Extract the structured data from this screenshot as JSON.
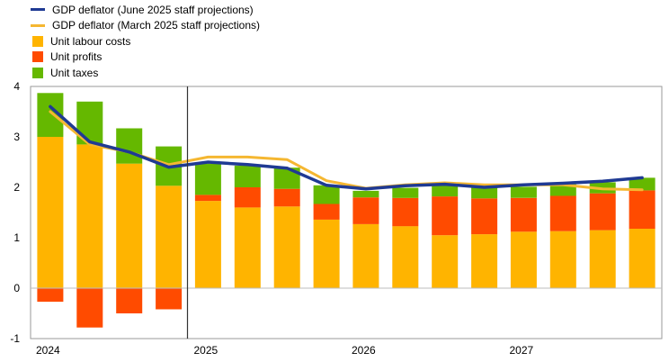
{
  "legend": [
    {
      "label": "GDP deflator (June 2025 staff projections)",
      "color": "#1f3a93",
      "kind": "line"
    },
    {
      "label": "GDP deflator (March 2025 staff projections)",
      "color": "#f5b731",
      "kind": "line"
    },
    {
      "label": "Unit labour costs",
      "color": "#ffb400",
      "kind": "box"
    },
    {
      "label": "Unit profits",
      "color": "#ff4b00",
      "kind": "box"
    },
    {
      "label": "Unit taxes",
      "color": "#65b800",
      "kind": "box"
    }
  ],
  "chart_data": {
    "type": "bar",
    "stacked": true,
    "quarters": [
      "2024Q1",
      "2024Q2",
      "2024Q3",
      "2024Q4",
      "2025Q1",
      "2025Q2",
      "2025Q3",
      "2025Q4",
      "2026Q1",
      "2026Q2",
      "2026Q3",
      "2026Q4",
      "2027Q1",
      "2027Q2",
      "2027Q3",
      "2027Q4"
    ],
    "year_labels": [
      {
        "label": "2024",
        "index": 0
      },
      {
        "label": "2025",
        "index": 4
      },
      {
        "label": "2026",
        "index": 8
      },
      {
        "label": "2027",
        "index": 12
      }
    ],
    "series": [
      {
        "name": "Unit labour costs",
        "values": [
          3.0,
          2.85,
          2.47,
          2.03,
          1.73,
          1.6,
          1.62,
          1.36,
          1.27,
          1.23,
          1.05,
          1.07,
          1.12,
          1.13,
          1.15,
          1.18
        ]
      },
      {
        "name": "Unit profits",
        "values": [
          -0.27,
          -0.78,
          -0.5,
          -0.42,
          0.12,
          0.4,
          0.35,
          0.31,
          0.53,
          0.56,
          0.77,
          0.71,
          0.67,
          0.7,
          0.73,
          0.76
        ]
      },
      {
        "name": "Unit taxes",
        "values": [
          0.87,
          0.85,
          0.7,
          0.78,
          0.62,
          0.43,
          0.42,
          0.37,
          0.13,
          0.2,
          0.23,
          0.23,
          0.22,
          0.23,
          0.22,
          0.25
        ]
      }
    ],
    "lines": [
      {
        "name": "GDP deflator (June 2025 staff projections)",
        "values": [
          3.6,
          2.9,
          2.7,
          2.4,
          2.5,
          2.45,
          2.38,
          2.04,
          1.97,
          2.03,
          2.06,
          2.0,
          2.05,
          2.08,
          2.12,
          2.19
        ]
      },
      {
        "name": "GDP deflator (March 2025 staff projections)",
        "values": [
          3.5,
          2.85,
          2.7,
          2.45,
          2.6,
          2.6,
          2.55,
          2.13,
          1.98,
          2.05,
          2.09,
          2.05,
          2.05,
          2.05,
          1.97,
          1.95
        ]
      }
    ],
    "ylim": [
      -1,
      4
    ],
    "yticks": [
      -1,
      0,
      1,
      2,
      3,
      4
    ],
    "projection_start_index": 4,
    "grid": false,
    "legend_position": "top-left"
  }
}
